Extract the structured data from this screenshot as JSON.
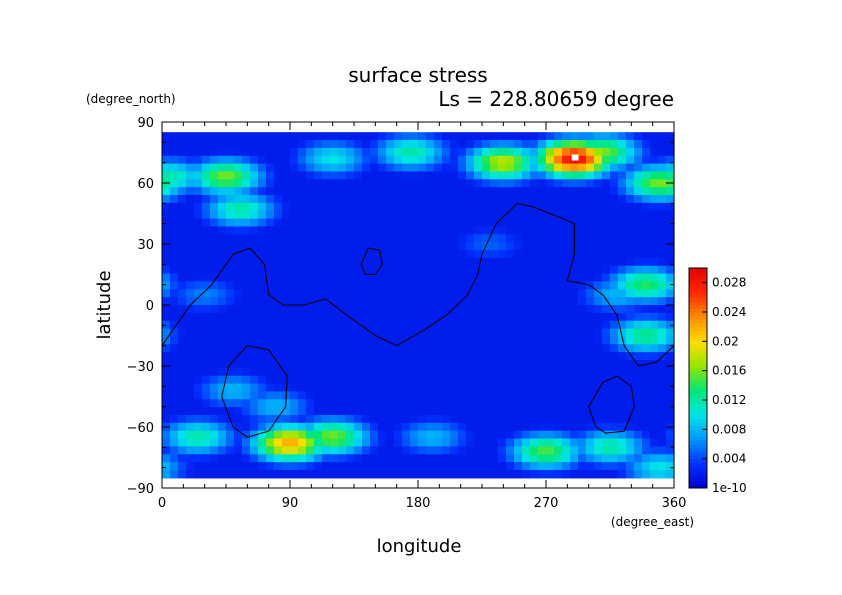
{
  "chart_data": {
    "type": "heatmap",
    "title": "surface stress",
    "subtitle": "Ls = 228.80659 degree",
    "xlabel": "longitude",
    "ylabel": "latitude",
    "x_unit": "(degree_east)",
    "y_unit": "(degree_north)",
    "xlim": [
      0,
      360
    ],
    "ylim": [
      -90,
      90
    ],
    "x_ticks": [
      "0",
      "90",
      "180",
      "270",
      "360"
    ],
    "y_ticks": [
      "90",
      "60",
      "30",
      "0",
      "−30",
      "−60",
      "−90"
    ],
    "colorbar": {
      "range": [
        0,
        0.03
      ],
      "labels": [
        "0.028",
        "0.024",
        "0.02",
        "0.016",
        "0.012",
        "0.008",
        "0.004",
        "1e-10"
      ],
      "label_values": [
        0.028,
        0.024,
        0.02,
        0.016,
        0.012,
        0.008,
        0.004,
        0.0
      ],
      "colors": [
        "#0000cd",
        "#0030ff",
        "#0096ff",
        "#00e6e6",
        "#00e678",
        "#96e600",
        "#ffdc00",
        "#ff8c00",
        "#ff2800",
        "#e60000"
      ]
    },
    "background_value": 0.002,
    "features": [
      {
        "lon": 45,
        "lat": 63,
        "value": 0.016
      },
      {
        "lon": 55,
        "lat": 47,
        "value": 0.012
      },
      {
        "lon": 5,
        "lat": 63,
        "value": 0.012
      },
      {
        "lon": 120,
        "lat": 72,
        "value": 0.01
      },
      {
        "lon": 175,
        "lat": 75,
        "value": 0.012
      },
      {
        "lon": 240,
        "lat": 70,
        "value": 0.018
      },
      {
        "lon": 290,
        "lat": 72,
        "value": 0.029
      },
      {
        "lon": 310,
        "lat": 75,
        "value": 0.016
      },
      {
        "lon": 350,
        "lat": 60,
        "value": 0.016
      },
      {
        "lon": 340,
        "lat": 10,
        "value": 0.014
      },
      {
        "lon": 340,
        "lat": -15,
        "value": 0.013
      },
      {
        "lon": 320,
        "lat": 5,
        "value": 0.008
      },
      {
        "lon": 25,
        "lat": -65,
        "value": 0.012
      },
      {
        "lon": 90,
        "lat": -68,
        "value": 0.022
      },
      {
        "lon": 120,
        "lat": -65,
        "value": 0.016
      },
      {
        "lon": 50,
        "lat": -42,
        "value": 0.008
      },
      {
        "lon": 80,
        "lat": -50,
        "value": 0.008
      },
      {
        "lon": 190,
        "lat": -65,
        "value": 0.008
      },
      {
        "lon": 270,
        "lat": -72,
        "value": 0.015
      },
      {
        "lon": 315,
        "lat": -70,
        "value": 0.012
      },
      {
        "lon": 350,
        "lat": -80,
        "value": 0.01
      },
      {
        "lon": 30,
        "lat": 5,
        "value": 0.006
      },
      {
        "lon": 230,
        "lat": 30,
        "value": 0.005
      }
    ],
    "contours": [
      [
        [
          0,
          -20
        ],
        [
          10,
          -10
        ],
        [
          20,
          0
        ],
        [
          35,
          10
        ],
        [
          50,
          25
        ],
        [
          62,
          28
        ],
        [
          72,
          20
        ],
        [
          75,
          5
        ],
        [
          85,
          0
        ],
        [
          100,
          0
        ],
        [
          115,
          3
        ],
        [
          130,
          -5
        ],
        [
          150,
          -15
        ],
        [
          165,
          -20
        ],
        [
          185,
          -12
        ],
        [
          200,
          -5
        ],
        [
          215,
          5
        ],
        [
          222,
          15
        ],
        [
          225,
          25
        ],
        [
          235,
          40
        ],
        [
          250,
          50
        ],
        [
          262,
          48
        ],
        [
          280,
          43
        ],
        [
          290,
          40
        ],
        [
          290,
          25
        ],
        [
          285,
          12
        ],
        [
          300,
          10
        ],
        [
          310,
          5
        ],
        [
          320,
          -5
        ],
        [
          325,
          -20
        ],
        [
          335,
          -30
        ],
        [
          348,
          -28
        ],
        [
          360,
          -20
        ]
      ],
      [
        [
          140,
          20
        ],
        [
          145,
          28
        ],
        [
          153,
          27
        ],
        [
          155,
          20
        ],
        [
          150,
          15
        ],
        [
          143,
          15
        ],
        [
          140,
          20
        ]
      ],
      [
        [
          50,
          -60
        ],
        [
          42,
          -45
        ],
        [
          47,
          -30
        ],
        [
          60,
          -20
        ],
        [
          75,
          -22
        ],
        [
          88,
          -35
        ],
        [
          87,
          -50
        ],
        [
          75,
          -62
        ],
        [
          60,
          -65
        ],
        [
          50,
          -60
        ]
      ],
      [
        [
          305,
          -60
        ],
        [
          300,
          -50
        ],
        [
          310,
          -38
        ],
        [
          320,
          -35
        ],
        [
          330,
          -40
        ],
        [
          332,
          -50
        ],
        [
          325,
          -62
        ],
        [
          312,
          -63
        ],
        [
          305,
          -60
        ]
      ]
    ]
  }
}
